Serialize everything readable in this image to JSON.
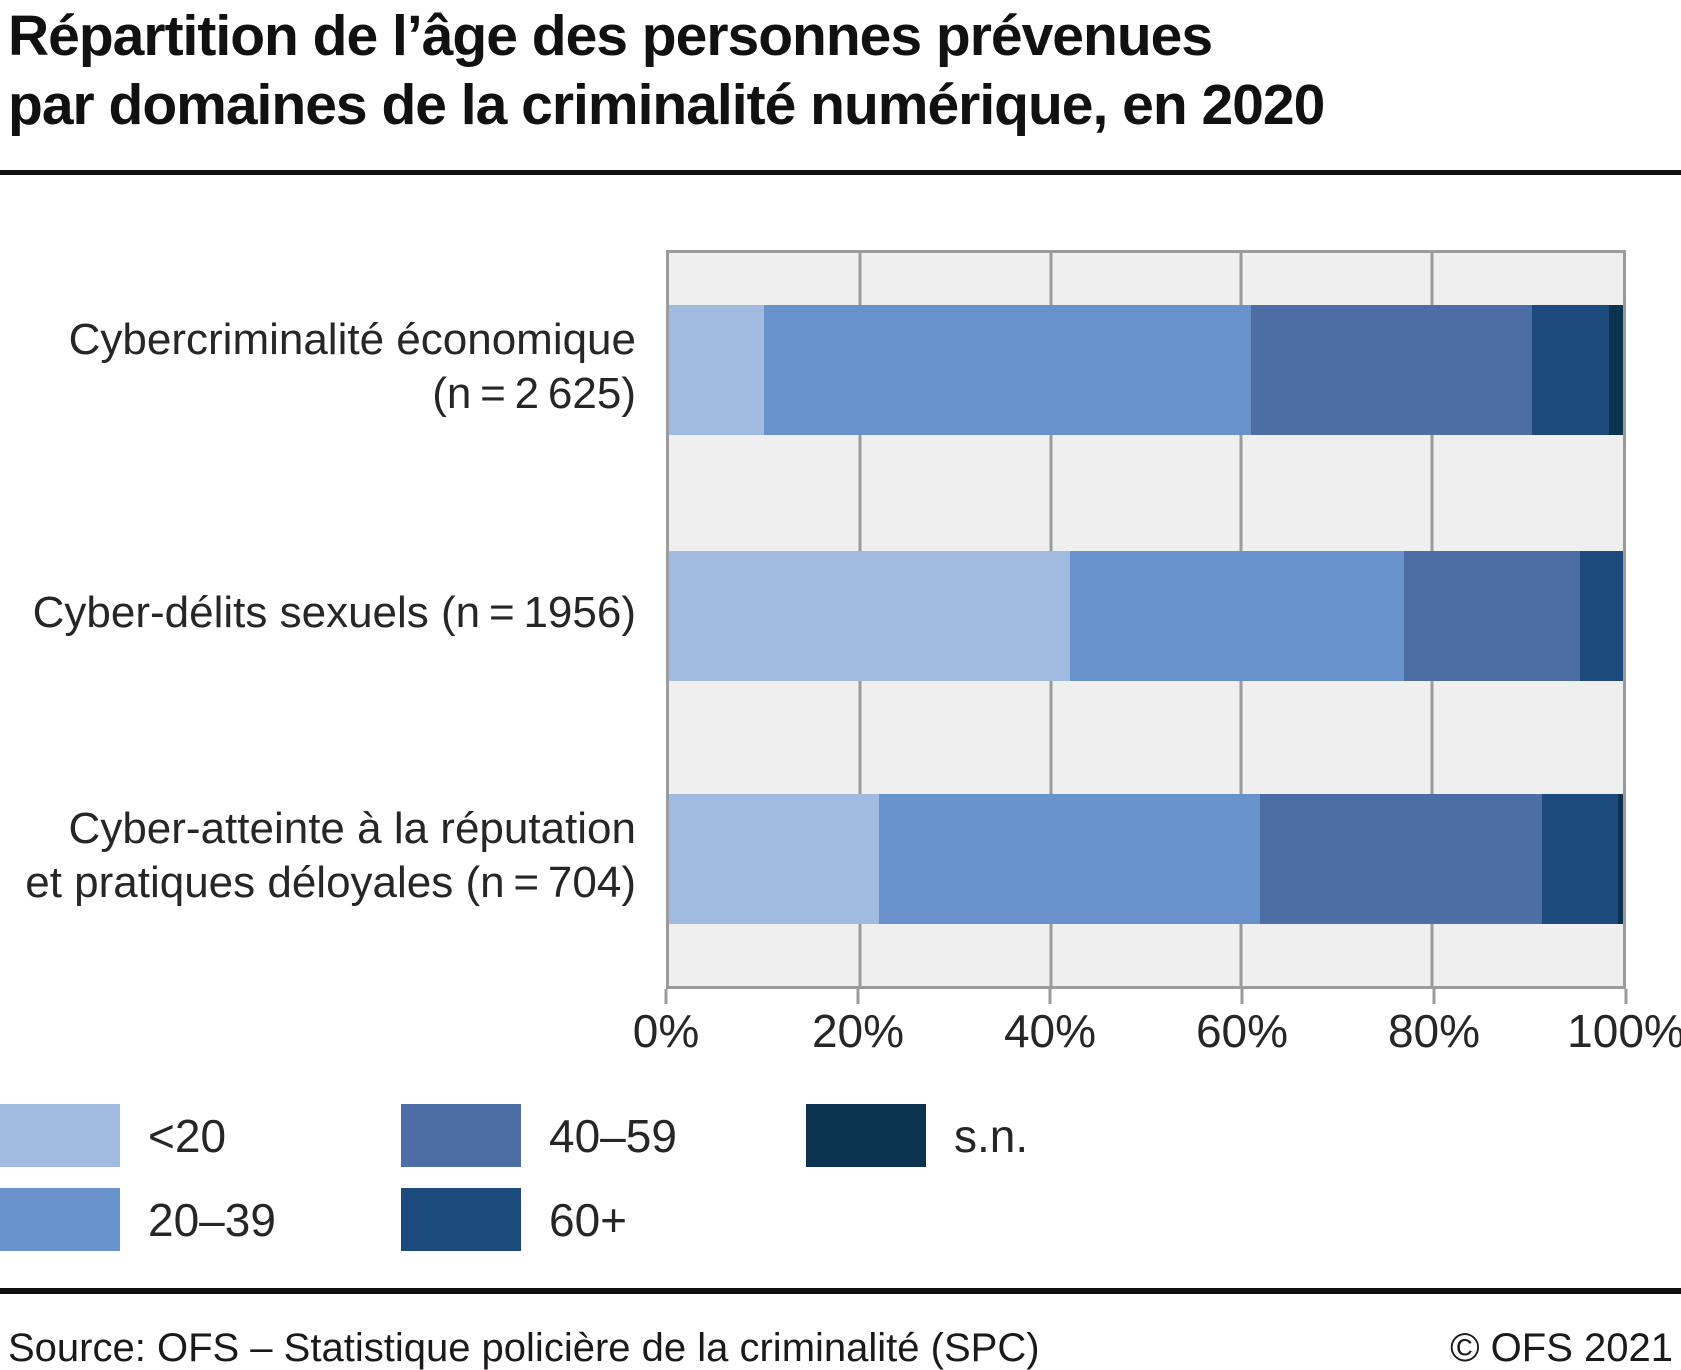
{
  "title": {
    "line1": "Répartition de l’âge des personnes prévenues",
    "line2": "par domaines de la criminalité numérique, en 2020"
  },
  "chart_data": {
    "type": "bar",
    "orientation": "horizontal",
    "stacked": true,
    "unit": "percent",
    "categories": [
      {
        "label_lines": [
          "Cybercriminalité économique",
          "(n = 2 625)"
        ]
      },
      {
        "label_lines": [
          "Cyber-délits sexuels (n = 1956)"
        ]
      },
      {
        "label_lines": [
          "Cyber-atteinte à la réputation",
          "et pratiques déloyales (n = 704)"
        ]
      }
    ],
    "series": [
      {
        "name": "<20",
        "color": "#a1bae0",
        "values": [
          10,
          42,
          22
        ]
      },
      {
        "name": "20–39",
        "color": "#6892cc",
        "values": [
          51,
          35,
          40
        ]
      },
      {
        "name": "40–59",
        "color": "#4c6ea4",
        "values": [
          29.5,
          18.5,
          29.5
        ]
      },
      {
        "name": "60+",
        "color": "#1d4a7d",
        "values": [
          8,
          4.5,
          8
        ]
      },
      {
        "name": "s.n.",
        "color": "#0b334f",
        "values": [
          1.5,
          0,
          0.5
        ]
      }
    ],
    "x_axis": {
      "ticks": [
        "0%",
        "20%",
        "40%",
        "60%",
        "80%",
        "100%"
      ],
      "range": [
        0,
        100
      ]
    },
    "legend_position": "bottom-left",
    "grid": true,
    "plot_background": "#efefef",
    "grid_color": "#9b9b9b"
  },
  "footer": {
    "source": "Source: OFS – Statistique policière de la criminalité (SPC)",
    "copyright": "© OFS 2021"
  }
}
